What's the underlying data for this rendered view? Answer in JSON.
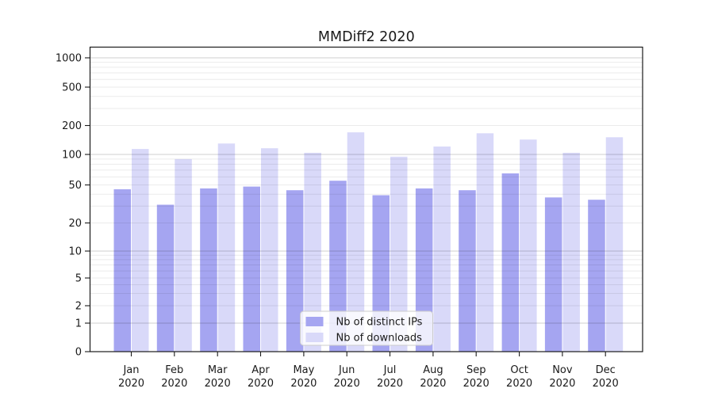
{
  "chart_data": {
    "type": "bar",
    "title": "MMDiff2 2020",
    "categories": [
      "Jan 2020",
      "Feb 2020",
      "Mar 2020",
      "Apr 2020",
      "May 2020",
      "Jun 2020",
      "Jul 2020",
      "Aug 2020",
      "Sep 2020",
      "Oct 2020",
      "Nov 2020",
      "Dec 2020"
    ],
    "x_tick_labels_line1": [
      "Jan",
      "Feb",
      "Mar",
      "Apr",
      "May",
      "Jun",
      "Jul",
      "Aug",
      "Sep",
      "Oct",
      "Nov",
      "Dec"
    ],
    "x_tick_labels_line2": "2020",
    "series": [
      {
        "name": "Nb of distinct IPs",
        "color": "#a5a5f1",
        "values": [
          45,
          31,
          46,
          48,
          44,
          55,
          39,
          46,
          44,
          65,
          37,
          35
        ]
      },
      {
        "name": "Nb of downloads",
        "color": "#d9d9f9",
        "values": [
          114,
          90,
          130,
          116,
          104,
          170,
          95,
          121,
          166,
          143,
          104,
          151
        ]
      }
    ],
    "xlabel": "",
    "ylabel": "",
    "yscale": "symlog",
    "y_ticks": [
      0,
      1,
      2,
      5,
      10,
      20,
      50,
      100,
      200,
      500,
      1000
    ],
    "y_tick_labels": [
      "0",
      "1",
      "2",
      "5",
      "10",
      "20",
      "50",
      "100",
      "200",
      "500",
      "1000"
    ],
    "ylim": [
      0,
      1300
    ],
    "grid": "horizontal major (powers of 10) and minor log gridlines, drawn over bars",
    "legend_position": "lower center",
    "plot_bg": "#ffffff",
    "spine_color": "#1a1a1a",
    "major_grid_color": "#cfcfcf",
    "minor_grid_color": "#ebebeb"
  }
}
